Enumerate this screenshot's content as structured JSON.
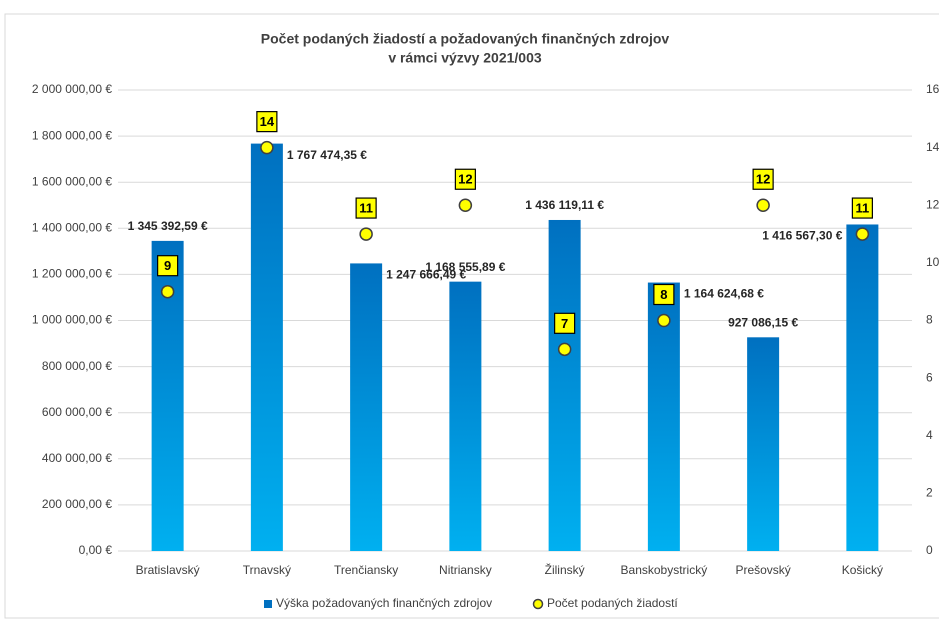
{
  "chart_data": {
    "type": "bar",
    "title": [
      "Počet podaných žiadostí a požadovaných finančných zdrojov",
      "v rámci výzvy 2021/003"
    ],
    "categories": [
      "Bratislavský",
      "Trnavský",
      "Trenčiansky",
      "Nitriansky",
      "Žilinský",
      "Banskobystrický",
      "Prešovský",
      "Košický"
    ],
    "series": [
      {
        "name": "Výška požadovaných finančných zdrojov",
        "color": "#0070c0",
        "color_light": "#00b0f0",
        "values": [
          1345392.59,
          1767474.35,
          1247666.49,
          1168555.89,
          1436119.11,
          1164624.68,
          927086.15,
          1416567.3
        ],
        "value_labels": [
          "1 345 392,59 €",
          "1 767 474,35 €",
          "1 247 666,49 €",
          "1 168 555,89 €",
          "1 436 119,11 €",
          "1 164 624,68 €",
          "927 086,15 €",
          "1 416 567,30 €"
        ]
      },
      {
        "name": "Počet podaných žiadostí",
        "color": "#ffff00",
        "type": "scatter",
        "axis": "y2",
        "values": [
          9,
          14,
          11,
          12,
          7,
          8,
          12,
          11
        ]
      }
    ],
    "ylim": [
      0,
      2000000
    ],
    "yticks": [
      {
        "value": 0,
        "label": "0,00 €"
      },
      {
        "value": 200000,
        "label": "200 000,00 €"
      },
      {
        "value": 400000,
        "label": "400 000,00 €"
      },
      {
        "value": 600000,
        "label": "600 000,00 €"
      },
      {
        "value": 800000,
        "label": "800 000,00 €"
      },
      {
        "value": 1000000,
        "label": "1 000 000,00 €"
      },
      {
        "value": 1200000,
        "label": "1 200 000,00 €"
      },
      {
        "value": 1400000,
        "label": "1 400 000,00 €"
      },
      {
        "value": 1600000,
        "label": "1 600 000,00 €"
      },
      {
        "value": 1800000,
        "label": "1 800 000,00 €"
      },
      {
        "value": 2000000,
        "label": "2 000 000,00 €"
      }
    ],
    "y2lim": [
      0,
      16
    ],
    "y2ticks": [
      0,
      2,
      4,
      6,
      8,
      10,
      12,
      14,
      16
    ],
    "grid": true,
    "legend": "bottom"
  }
}
